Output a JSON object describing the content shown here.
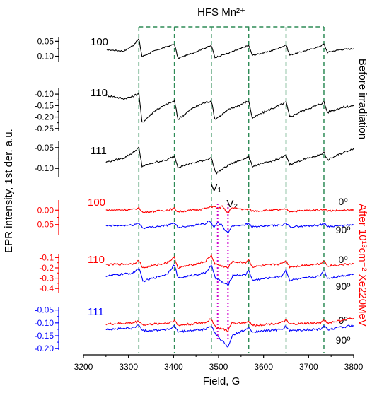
{
  "chart_data": {
    "type": "line",
    "title": "HFS Mn²⁺",
    "xlabel": "Field, G",
    "ylabel": "EPR intensity, 1st der. a.u.",
    "xlim": [
      3200,
      3800
    ],
    "x_ticks": [
      "3200",
      "3300",
      "3400",
      "3500",
      "3600",
      "3700",
      "3800"
    ],
    "right_label_top": "Before irradiation",
    "right_label_bottom": "After 10¹³cm⁻² Xe220MeV",
    "hfs_line_positions": [
      3323,
      3402,
      3484,
      3567,
      3650,
      3734
    ],
    "vacancy_line_positions": [
      3498,
      3521
    ],
    "vacancy_labels": [
      "V₁",
      "V₂"
    ],
    "colors": {
      "before": "#000000",
      "angle_0": "#ff0000",
      "angle_90": "#0000ff",
      "hfs_guide": "#2e8b57",
      "vacancy_guide": "#cc00cc"
    },
    "panels": [
      {
        "orientation": "100",
        "group": "before",
        "ylim": [
          -0.12,
          -0.035
        ],
        "y_ticks": [
          "-0.05",
          "-0.10"
        ],
        "series": [
          {
            "color": "#000000",
            "x": [
              3250,
              3290,
              3310,
              3323,
              3330,
              3360,
              3385,
              3402,
              3410,
              3440,
              3465,
              3484,
              3492,
              3525,
              3550,
              3567,
              3575,
              3610,
              3635,
              3650,
              3658,
              3690,
              3718,
              3734,
              3742,
              3770,
              3800
            ],
            "values": [
              -0.078,
              -0.083,
              -0.064,
              -0.042,
              -0.101,
              -0.081,
              -0.068,
              -0.06,
              -0.107,
              -0.091,
              -0.075,
              -0.065,
              -0.104,
              -0.088,
              -0.074,
              -0.064,
              -0.097,
              -0.085,
              -0.073,
              -0.062,
              -0.096,
              -0.083,
              -0.071,
              -0.06,
              -0.087,
              -0.078,
              -0.075
            ]
          }
        ]
      },
      {
        "orientation": "110",
        "group": "before",
        "ylim": [
          -0.26,
          -0.075
        ],
        "y_ticks": [
          "-0.10",
          "-0.15",
          "-0.20",
          "-0.25"
        ],
        "series": [
          {
            "color": "#000000",
            "x": [
              3250,
              3290,
              3310,
              3323,
              3330,
              3360,
              3385,
              3402,
              3410,
              3440,
              3465,
              3484,
              3492,
              3525,
              3550,
              3567,
              3575,
              3610,
              3635,
              3650,
              3658,
              3690,
              3718,
              3734,
              3742,
              3770,
              3800
            ],
            "values": [
              -0.105,
              -0.12,
              -0.11,
              -0.095,
              -0.225,
              -0.17,
              -0.145,
              -0.13,
              -0.21,
              -0.165,
              -0.14,
              -0.13,
              -0.21,
              -0.165,
              -0.145,
              -0.13,
              -0.205,
              -0.17,
              -0.15,
              -0.135,
              -0.2,
              -0.17,
              -0.15,
              -0.135,
              -0.18,
              -0.16,
              -0.15
            ]
          }
        ]
      },
      {
        "orientation": "111",
        "group": "before",
        "ylim": [
          -0.12,
          -0.035
        ],
        "y_ticks": [
          "-0.05",
          "-0.10"
        ],
        "series": [
          {
            "color": "#000000",
            "x": [
              3250,
              3290,
              3310,
              3323,
              3330,
              3360,
              3385,
              3402,
              3410,
              3440,
              3470,
              3484,
              3494,
              3525,
              3550,
              3567,
              3575,
              3610,
              3635,
              3650,
              3658,
              3690,
              3718,
              3734,
              3742,
              3770,
              3800
            ],
            "values": [
              -0.085,
              -0.075,
              -0.062,
              -0.05,
              -0.095,
              -0.085,
              -0.08,
              -0.07,
              -0.097,
              -0.088,
              -0.08,
              -0.075,
              -0.112,
              -0.09,
              -0.08,
              -0.072,
              -0.095,
              -0.085,
              -0.077,
              -0.068,
              -0.09,
              -0.078,
              -0.07,
              -0.062,
              -0.08,
              -0.065,
              -0.052
            ]
          }
        ]
      },
      {
        "orientation": "100",
        "group": "after",
        "ylim": [
          -0.085,
          0.035
        ],
        "y_ticks": [
          "0.00",
          "-0.05"
        ],
        "angles": [
          "0º",
          "90º"
        ],
        "series": [
          {
            "name": "0º",
            "color": "#ff0000",
            "x": [
              3250,
              3310,
              3323,
              3332,
              3390,
              3402,
              3410,
              3470,
              3480,
              3490,
              3498,
              3508,
              3521,
              3528,
              3560,
              3567,
              3575,
              3640,
              3650,
              3658,
              3725,
              3734,
              3742,
              3800
            ],
            "values": [
              0.0,
              0.002,
              0.008,
              -0.008,
              0.001,
              0.006,
              -0.006,
              0.005,
              0.01,
              0.014,
              0.004,
              0.013,
              -0.012,
              0.008,
              0.002,
              0.004,
              -0.003,
              0.001,
              0.004,
              -0.004,
              0.001,
              0.003,
              -0.002,
              0.0
            ]
          },
          {
            "name": "90º",
            "color": "#0000ff",
            "x": [
              3250,
              3310,
              3323,
              3332,
              3390,
              3402,
              3410,
              3470,
              3480,
              3490,
              3498,
              3506,
              3512,
              3521,
              3530,
              3560,
              3567,
              3575,
              3640,
              3650,
              3658,
              3725,
              3734,
              3742,
              3800
            ],
            "values": [
              -0.055,
              -0.052,
              -0.045,
              -0.062,
              -0.052,
              -0.044,
              -0.06,
              -0.047,
              -0.037,
              -0.058,
              -0.045,
              -0.05,
              -0.065,
              -0.078,
              -0.055,
              -0.05,
              -0.046,
              -0.058,
              -0.052,
              -0.046,
              -0.058,
              -0.052,
              -0.046,
              -0.056,
              -0.052
            ]
          }
        ]
      },
      {
        "orientation": "110",
        "group": "after",
        "ylim": [
          -0.44,
          -0.07
        ],
        "y_ticks": [
          "-0.1",
          "-0.2",
          "-0.3",
          "-0.4"
        ],
        "angles": [
          "0º",
          "90º"
        ],
        "series": [
          {
            "name": "0º",
            "color": "#ff0000",
            "x": [
              3250,
              3310,
              3323,
              3332,
              3385,
              3402,
              3410,
              3470,
              3484,
              3492,
              3521,
              3530,
              3560,
              3567,
              3575,
              3640,
              3650,
              3658,
              3725,
              3734,
              3742,
              3800
            ],
            "values": [
              -0.17,
              -0.16,
              -0.13,
              -0.2,
              -0.15,
              -0.1,
              -0.2,
              -0.14,
              -0.08,
              -0.16,
              -0.2,
              -0.14,
              -0.15,
              -0.12,
              -0.19,
              -0.16,
              -0.13,
              -0.19,
              -0.16,
              -0.13,
              -0.18,
              -0.16
            ]
          },
          {
            "name": "90º",
            "color": "#0000ff",
            "x": [
              3250,
              3310,
              3323,
              3332,
              3385,
              3402,
              3410,
              3470,
              3484,
              3494,
              3521,
              3532,
              3560,
              3567,
              3575,
              3640,
              3650,
              3658,
              3725,
              3734,
              3742,
              3800
            ],
            "values": [
              -0.28,
              -0.25,
              -0.2,
              -0.33,
              -0.26,
              -0.17,
              -0.3,
              -0.25,
              -0.18,
              -0.3,
              -0.37,
              -0.27,
              -0.27,
              -0.22,
              -0.32,
              -0.28,
              -0.22,
              -0.32,
              -0.28,
              -0.22,
              -0.3,
              -0.26
            ]
          }
        ]
      },
      {
        "orientation": "111",
        "group": "after",
        "ylim": [
          -0.205,
          -0.04
        ],
        "y_ticks": [
          "-0.05",
          "-0.10",
          "-0.15",
          "-0.20"
        ],
        "angles": [
          "0º",
          "90º"
        ],
        "series": [
          {
            "name": "0º",
            "color": "#ff0000",
            "x": [
              3250,
              3310,
              3323,
              3332,
              3390,
              3402,
              3410,
              3470,
              3484,
              3494,
              3521,
              3530,
              3560,
              3567,
              3575,
              3640,
              3650,
              3658,
              3725,
              3734,
              3742,
              3800
            ],
            "values": [
              -0.105,
              -0.1,
              -0.092,
              -0.108,
              -0.1,
              -0.09,
              -0.11,
              -0.098,
              -0.085,
              -0.118,
              -0.13,
              -0.1,
              -0.1,
              -0.092,
              -0.11,
              -0.1,
              -0.09,
              -0.105,
              -0.1,
              -0.088,
              -0.1,
              -0.082
            ]
          },
          {
            "name": "90º",
            "color": "#0000ff",
            "x": [
              3250,
              3310,
              3323,
              3332,
              3390,
              3402,
              3410,
              3470,
              3484,
              3494,
              3508,
              3521,
              3532,
              3560,
              3567,
              3575,
              3640,
              3650,
              3658,
              3725,
              3734,
              3742,
              3800
            ],
            "values": [
              -0.125,
              -0.12,
              -0.108,
              -0.13,
              -0.125,
              -0.112,
              -0.135,
              -0.125,
              -0.112,
              -0.145,
              -0.17,
              -0.195,
              -0.145,
              -0.128,
              -0.118,
              -0.135,
              -0.125,
              -0.113,
              -0.13,
              -0.125,
              -0.112,
              -0.125,
              -0.11
            ]
          }
        ]
      }
    ]
  }
}
